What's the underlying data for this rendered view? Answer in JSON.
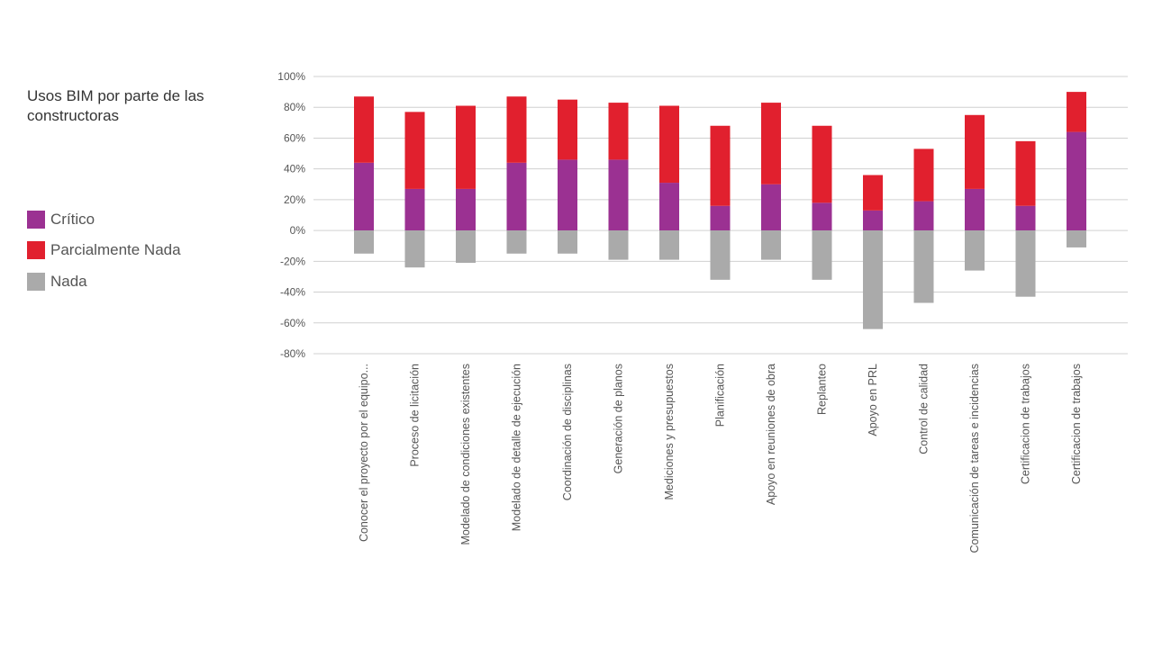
{
  "chart_data": {
    "type": "bar",
    "stacked": true,
    "title": "Usos BIM por parte de las constructoras",
    "xlabel": "",
    "ylabel": "",
    "ylim": [
      -80,
      100
    ],
    "y_ticks": [
      "100%",
      "80%",
      "60%",
      "40%",
      "20%",
      "0%",
      "-20%",
      "-40%",
      "-60%",
      "-80%"
    ],
    "y_tick_values": [
      100,
      80,
      60,
      40,
      20,
      0,
      -20,
      -40,
      -60,
      -80
    ],
    "grid": true,
    "legend_position": "left",
    "categories": [
      "Conocer el proyecto por el equipo...",
      "Proceso de licitación",
      "Modelado de condiciones existentes",
      "Modelado de detalle de ejecución",
      "Coordinación de disciplinas",
      "Generación de planos",
      "Mediciones y presupuestos",
      "Planificación",
      "Apoyo en reuniones de obra",
      "Replanteo",
      "Apoyo en PRL",
      "Control de calidad",
      "Comunicación de tareas e incidencias",
      "Certificacion de trabajos",
      "Certificacion de trabajos"
    ],
    "series": [
      {
        "name": "Crítico",
        "color": "#9b3192",
        "values": [
          44,
          27,
          27,
          44,
          46,
          46,
          31,
          16,
          30,
          18,
          13,
          19,
          27,
          16,
          64
        ]
      },
      {
        "name": "Parcialmente Nada",
        "color": "#e1202e",
        "values": [
          43,
          50,
          54,
          43,
          39,
          37,
          50,
          52,
          53,
          50,
          23,
          34,
          48,
          42,
          26
        ]
      },
      {
        "name": "Nada",
        "color": "#aaaaaa",
        "values": [
          -15,
          -24,
          -21,
          -15,
          -15,
          -19,
          -19,
          -32,
          -19,
          -32,
          -64,
          -47,
          -26,
          -43,
          -11
        ]
      }
    ]
  }
}
